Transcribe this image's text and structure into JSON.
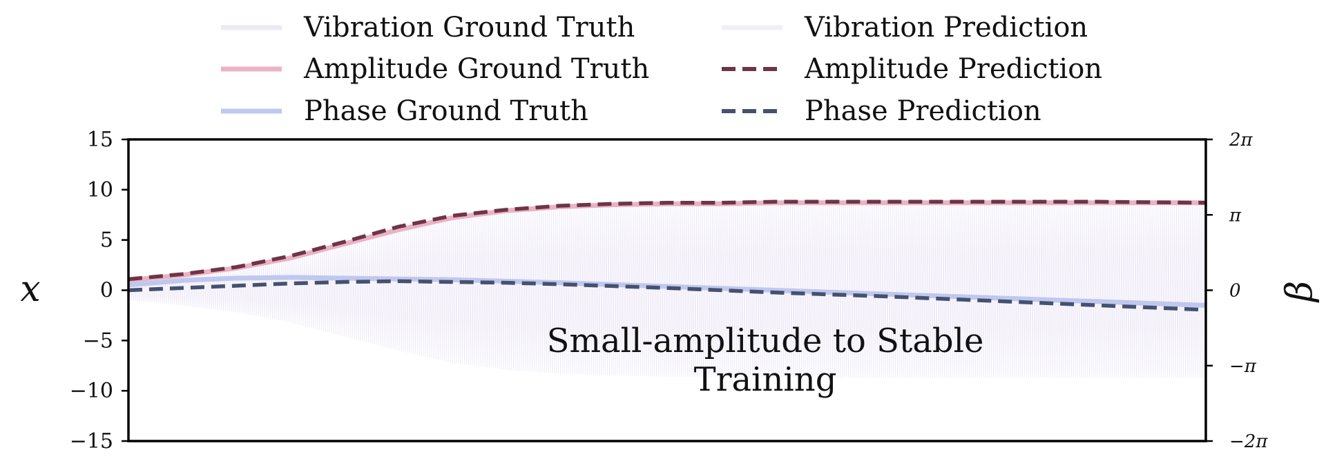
{
  "chart_data": {
    "type": "line",
    "title": "",
    "annotation_lines": [
      "Small-amplitude to Stable",
      "Training"
    ],
    "y_left": {
      "label": "x",
      "lim": [
        -15,
        15
      ],
      "ticks": [
        15,
        10,
        5,
        0,
        -5,
        -10,
        -15
      ],
      "tick_labels": [
        "15",
        "10",
        "5",
        "0",
        "−5",
        "−10",
        "−15"
      ]
    },
    "y_right": {
      "label": "β",
      "lim_in_pi": [
        -2,
        2
      ],
      "ticks_in_pi": [
        2,
        1,
        0,
        -1,
        -2
      ],
      "tick_labels": [
        "2π",
        "π",
        "0",
        "−π",
        "−2π"
      ]
    },
    "x_range": [
      0,
      1
    ],
    "grid": false,
    "legend": {
      "placement": "top-center",
      "columns": 2,
      "entries": [
        {
          "label": "Vibration Ground Truth",
          "color": "#ece8f6",
          "style": "solid"
        },
        {
          "label": "Vibration Prediction",
          "color": "#f0eef8",
          "style": "solid"
        },
        {
          "label": "Amplitude Ground Truth",
          "color": "#eab3c4",
          "style": "solid"
        },
        {
          "label": "Amplitude Prediction",
          "color": "#6e3448",
          "style": "dashed"
        },
        {
          "label": "Phase Ground Truth",
          "color": "#bfc8ee",
          "style": "solid"
        },
        {
          "label": "Phase Prediction",
          "color": "#455170",
          "style": "dashed"
        }
      ]
    },
    "series": [
      {
        "name": "Amplitude Ground Truth",
        "axis": "left",
        "color": "#eab3c4",
        "x": [
          0,
          0.05,
          0.1,
          0.15,
          0.2,
          0.25,
          0.3,
          0.35,
          0.4,
          0.45,
          0.5,
          0.55,
          0.6,
          0.7,
          0.8,
          0.9,
          1.0
        ],
        "y": [
          1.0,
          1.5,
          2.2,
          3.2,
          4.6,
          6.0,
          7.2,
          7.9,
          8.3,
          8.5,
          8.6,
          8.6,
          8.7,
          8.7,
          8.7,
          8.7,
          8.7
        ]
      },
      {
        "name": "Amplitude Prediction",
        "axis": "left",
        "color": "#6e3448",
        "x": [
          0,
          0.05,
          0.1,
          0.15,
          0.2,
          0.25,
          0.3,
          0.35,
          0.4,
          0.45,
          0.5,
          0.55,
          0.6,
          0.7,
          0.8,
          0.9,
          1.0
        ],
        "y": [
          1.1,
          1.6,
          2.3,
          3.4,
          4.8,
          6.3,
          7.4,
          8.0,
          8.4,
          8.6,
          8.7,
          8.7,
          8.8,
          8.8,
          8.8,
          8.8,
          8.7
        ]
      },
      {
        "name": "Phase Ground Truth",
        "axis": "right",
        "color": "#bfc8ee",
        "x": [
          0,
          0.05,
          0.1,
          0.15,
          0.2,
          0.25,
          0.3,
          0.35,
          0.4,
          0.5,
          0.6,
          0.7,
          0.8,
          0.9,
          1.0
        ],
        "y": [
          0.07,
          0.13,
          0.16,
          0.17,
          0.16,
          0.15,
          0.14,
          0.12,
          0.1,
          0.05,
          0.0,
          -0.05,
          -0.1,
          -0.15,
          -0.2
        ]
      },
      {
        "name": "Phase Prediction",
        "axis": "right",
        "color": "#455170",
        "x": [
          0,
          0.05,
          0.1,
          0.15,
          0.2,
          0.25,
          0.3,
          0.35,
          0.4,
          0.5,
          0.6,
          0.7,
          0.8,
          0.9,
          1.0
        ],
        "y": [
          0.0,
          0.03,
          0.06,
          0.09,
          0.11,
          0.12,
          0.11,
          0.1,
          0.08,
          0.03,
          -0.03,
          -0.08,
          -0.14,
          -0.2,
          -0.26
        ]
      }
    ]
  }
}
